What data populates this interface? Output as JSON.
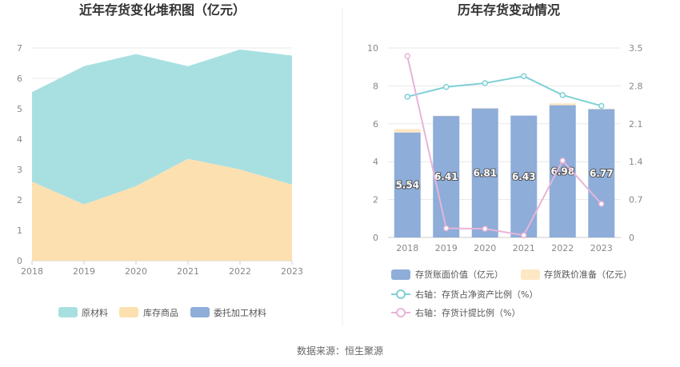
{
  "source_text": "数据来源：恒生聚源",
  "colors": {
    "raw_material": "#a8e0e2",
    "inventory_goods": "#fde0b0",
    "processing": "#8eadd9",
    "book_value": "#8eadd9",
    "impairment": "#fde8c4",
    "ratio_line": "#7fd0d6",
    "provision_line": "#e8b4d8"
  },
  "chart_data": [
    {
      "type": "area",
      "title": "近年存货变化堆积图（亿元）",
      "xlabel": "",
      "ylabel": "",
      "categories": [
        "2018",
        "2019",
        "2020",
        "2021",
        "2022",
        "2023"
      ],
      "ylim": [
        0,
        7
      ],
      "yticks": [
        "0",
        "1",
        "2",
        "3",
        "4",
        "5",
        "6",
        "7"
      ],
      "stacked": true,
      "grid": true,
      "legend_position": "bottom",
      "series": [
        {
          "name": "库存商品",
          "values": [
            2.6,
            1.85,
            2.45,
            3.35,
            3.0,
            2.5
          ]
        },
        {
          "name": "原材料",
          "values": [
            2.95,
            4.55,
            4.35,
            3.05,
            3.95,
            4.25
          ]
        },
        {
          "name": "委托加工材料",
          "values": [
            0,
            0,
            0,
            0,
            0,
            0
          ]
        }
      ],
      "legend": [
        "原材料",
        "库存商品",
        "委托加工材料"
      ]
    },
    {
      "type": "bar",
      "title": "历年存货变动情况",
      "xlabel": "",
      "ylabel": "",
      "categories": [
        "2018",
        "2019",
        "2020",
        "2021",
        "2022",
        "2023"
      ],
      "ylim": [
        0,
        10
      ],
      "yticks": [
        "0",
        "2",
        "4",
        "6",
        "8",
        "10"
      ],
      "y2lim": [
        0,
        3.5
      ],
      "y2ticks": [
        "0",
        "0.7",
        "1.4",
        "2.1",
        "2.8",
        "3.5"
      ],
      "stacked": true,
      "grid": true,
      "legend_position": "bottom",
      "series": [
        {
          "name": "存货账面价值（亿元）",
          "values": [
            5.54,
            6.41,
            6.81,
            6.43,
            6.98,
            6.77
          ],
          "labels": [
            "5.54",
            "6.41",
            "6.81",
            "6.43",
            "6.98",
            "6.77"
          ]
        },
        {
          "name": "存货跌价准备（亿元）",
          "values": [
            0.18,
            0.02,
            0.02,
            0.0,
            0.1,
            0.02
          ]
        }
      ],
      "lines": [
        {
          "name": "右轴：存货占净资产比例（%）",
          "axis": "right",
          "values": [
            2.6,
            2.78,
            2.85,
            2.98,
            2.63,
            2.43
          ]
        },
        {
          "name": "右轴：存货计提比例（%）",
          "axis": "right",
          "values": [
            3.35,
            0.17,
            0.16,
            0.04,
            1.42,
            0.62
          ]
        }
      ]
    }
  ]
}
